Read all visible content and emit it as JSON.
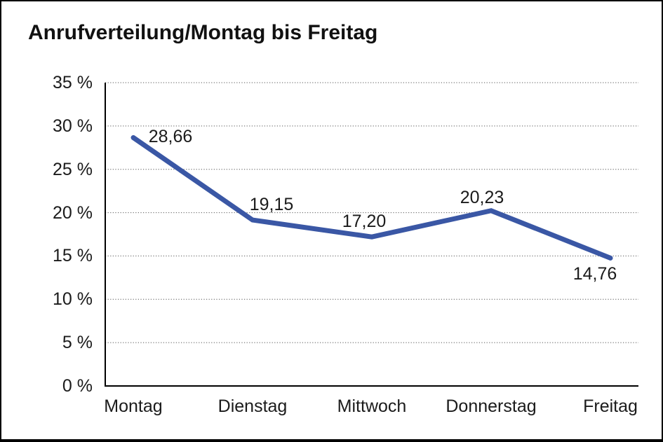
{
  "window": {
    "background_color": "#ffffff",
    "frame_border_color": "#000000"
  },
  "chart_data": {
    "type": "line",
    "title": "Anrufverteilung/Montag bis Freitag",
    "categories": [
      "Montag",
      "Dienstag",
      "Mittwoch",
      "Donnerstag",
      "Freitag"
    ],
    "series": [
      {
        "name": "Anrufverteilung",
        "values": [
          28.66,
          19.15,
          17.2,
          20.23,
          14.76
        ]
      }
    ],
    "data_labels": [
      "28,66",
      "19,15",
      "17,20",
      "20,23",
      "14,76"
    ],
    "xlabel": "",
    "ylabel": "",
    "ylim": [
      0,
      35
    ],
    "y_tick_step": 5,
    "y_tick_labels": [
      "0 %",
      "5 %",
      "10 %",
      "15 %",
      "20 %",
      "25 %",
      "30 %",
      "35 %"
    ],
    "grid": "horizontal-dotted",
    "legend_position": "none",
    "line_color": "#3A57A5",
    "axis_color": "#000000",
    "gridline_color": "#555555",
    "label_color": "#1b1b1b"
  }
}
